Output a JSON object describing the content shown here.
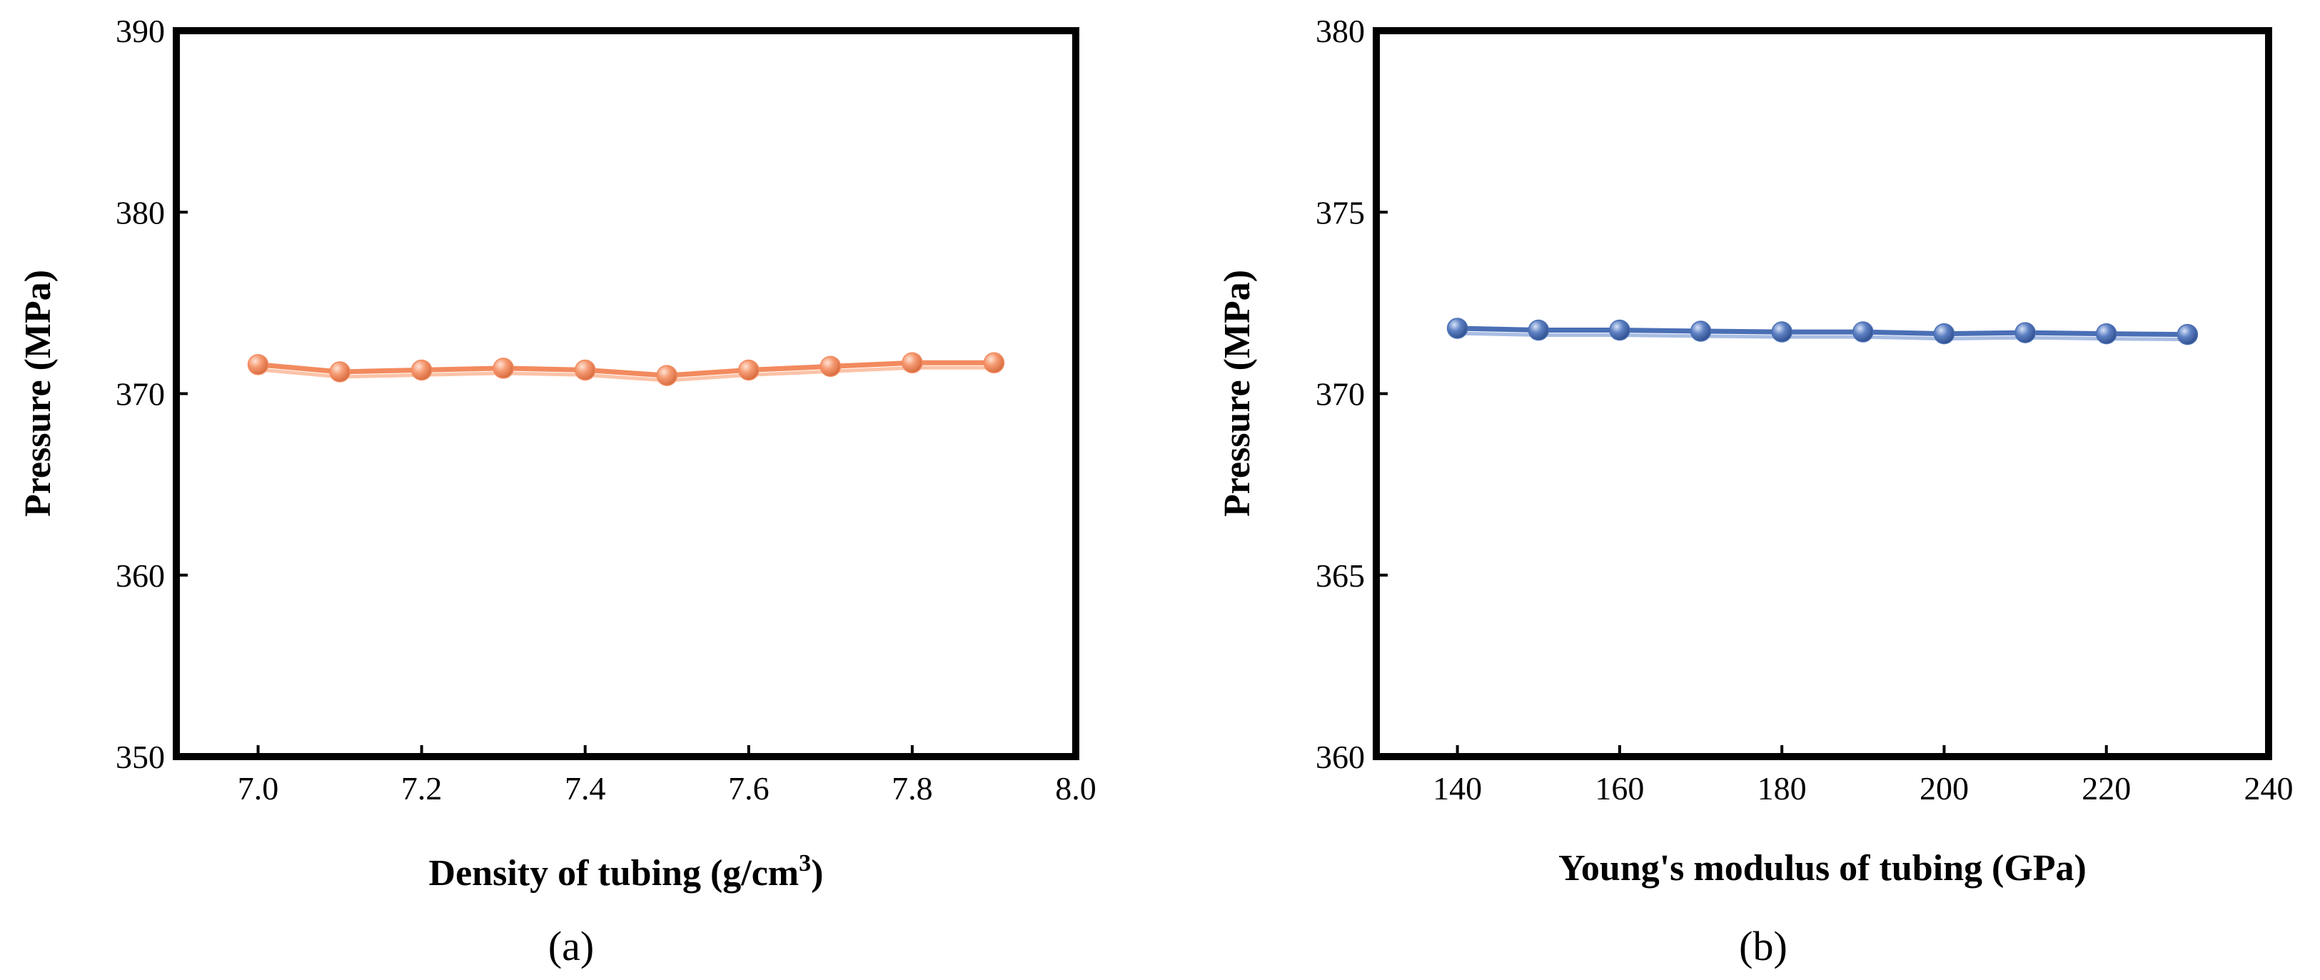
{
  "chart_data": [
    {
      "type": "line",
      "panel_label": "(a)",
      "xlabel": "Density of tubing (g/cm",
      "xlabel_superscript": "3",
      "xlabel_suffix": ")",
      "ylabel": "Pressure (MPa)",
      "xlim": [
        6.9,
        8.0
      ],
      "ylim": [
        350,
        390
      ],
      "xticks": [
        "7.0",
        "7.2",
        "7.4",
        "7.6",
        "7.8",
        "8.0"
      ],
      "yticks": [
        "350",
        "360",
        "370",
        "380",
        "390"
      ],
      "grid": false,
      "color": "#f28a5e",
      "series": [
        {
          "name": "Pressure",
          "x": [
            7.0,
            7.1,
            7.2,
            7.3,
            7.4,
            7.5,
            7.6,
            7.7,
            7.8,
            7.9
          ],
          "y": [
            371.6,
            371.2,
            371.3,
            371.4,
            371.3,
            371.0,
            371.3,
            371.5,
            371.7,
            371.7
          ]
        }
      ]
    },
    {
      "type": "line",
      "panel_label": "(b)",
      "xlabel": "Young's modulus of tubing (GPa)",
      "ylabel": "Pressure (MPa)",
      "xlim": [
        130,
        240
      ],
      "ylim": [
        360,
        380
      ],
      "xticks": [
        "140",
        "160",
        "180",
        "200",
        "220",
        "240"
      ],
      "yticks": [
        "360",
        "365",
        "370",
        "375",
        "380"
      ],
      "grid": false,
      "color": "#4a6fb5",
      "series": [
        {
          "name": "Pressure",
          "x": [
            140,
            150,
            160,
            170,
            180,
            190,
            200,
            210,
            220,
            230
          ],
          "y": [
            371.8,
            371.75,
            371.75,
            371.72,
            371.7,
            371.7,
            371.65,
            371.68,
            371.65,
            371.63
          ]
        }
      ]
    }
  ]
}
